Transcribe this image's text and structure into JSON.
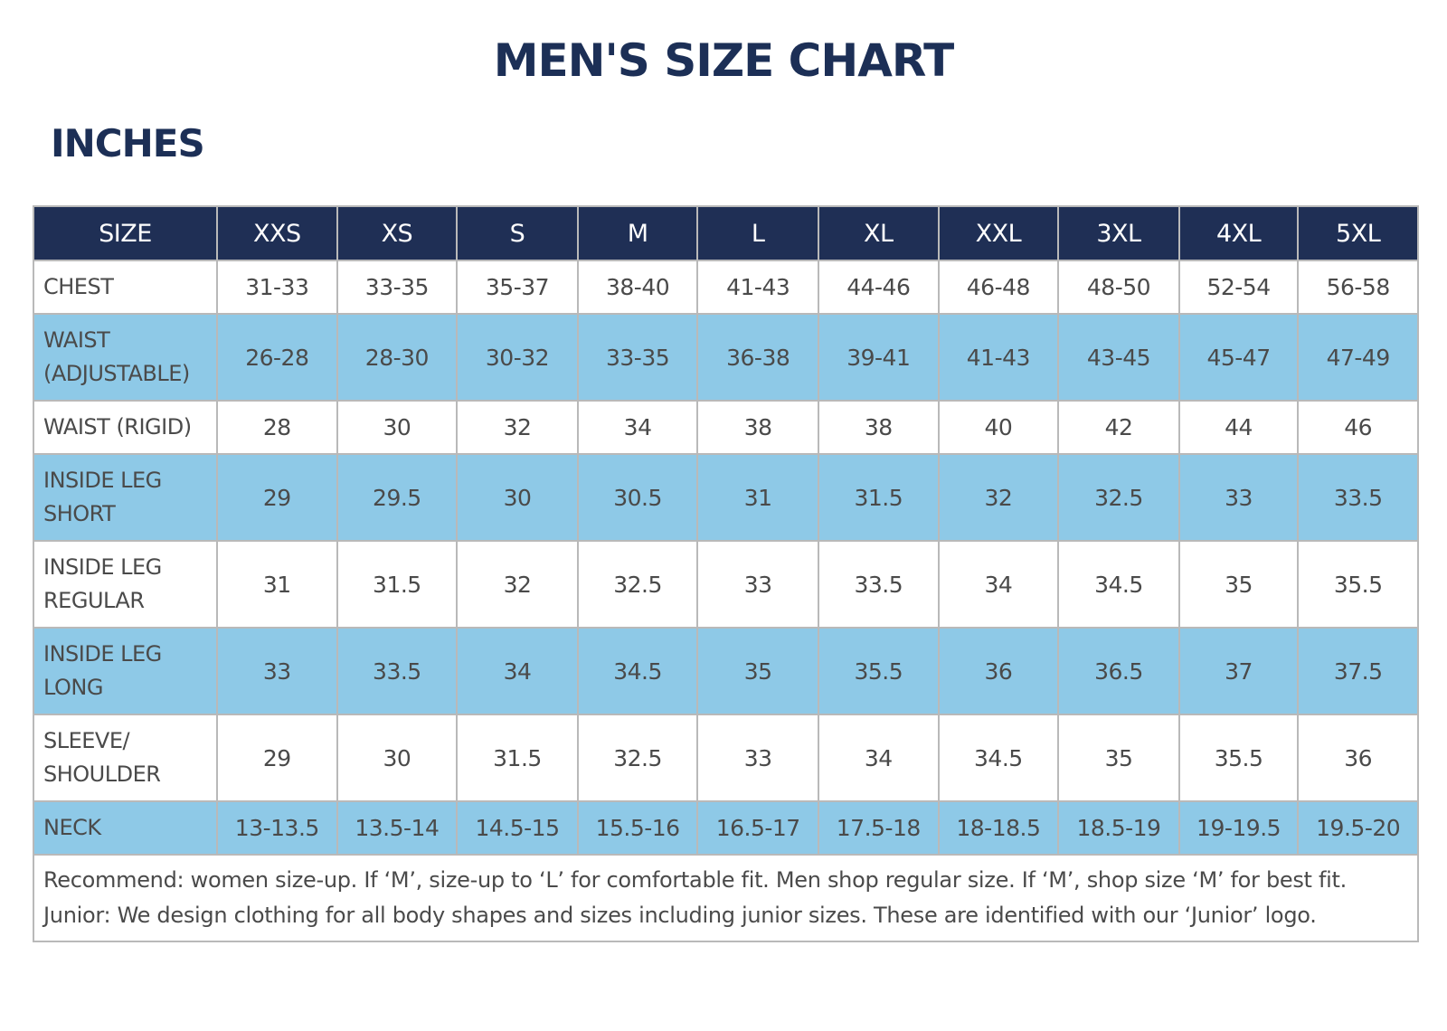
{
  "title": "MEN'S SIZE CHART",
  "subtitle": "INCHES",
  "table": {
    "header": [
      "SIZE",
      "XXS",
      "XS",
      "S",
      "M",
      "L",
      "XL",
      "XXL",
      "3XL",
      "4XL",
      "5XL"
    ],
    "rows": [
      {
        "label": [
          "CHEST"
        ],
        "values": [
          "31-33",
          "33-35",
          "35-37",
          "38-40",
          "41-43",
          "44-46",
          "46-48",
          "48-50",
          "52-54",
          "56-58"
        ]
      },
      {
        "label": [
          "WAIST",
          "(ADJUSTABLE)"
        ],
        "values": [
          "26-28",
          "28-30",
          "30-32",
          "33-35",
          "36-38",
          "39-41",
          "41-43",
          "43-45",
          "45-47",
          "47-49"
        ]
      },
      {
        "label": [
          "WAIST (RIGID)"
        ],
        "values": [
          "28",
          "30",
          "32",
          "34",
          "38",
          "38",
          "40",
          "42",
          "44",
          "46"
        ]
      },
      {
        "label": [
          "INSIDE LEG",
          "SHORT"
        ],
        "values": [
          "29",
          "29.5",
          "30",
          "30.5",
          "31",
          "31.5",
          "32",
          "32.5",
          "33",
          "33.5"
        ]
      },
      {
        "label": [
          "INSIDE LEG",
          "REGULAR"
        ],
        "values": [
          "31",
          "31.5",
          "32",
          "32.5",
          "33",
          "33.5",
          "34",
          "34.5",
          "35",
          "35.5"
        ]
      },
      {
        "label": [
          "INSIDE LEG",
          "LONG"
        ],
        "values": [
          "33",
          "33.5",
          "34",
          "34.5",
          "35",
          "35.5",
          "36",
          "36.5",
          "37",
          "37.5"
        ]
      },
      {
        "label": [
          "SLEEVE/",
          "SHOULDER"
        ],
        "values": [
          "29",
          "30",
          "31.5",
          "32.5",
          "33",
          "34",
          "34.5",
          "35",
          "35.5",
          "36"
        ]
      },
      {
        "label": [
          "NECK"
        ],
        "values": [
          "13-13.5",
          "13.5-14",
          "14.5-15",
          "15.5-16",
          "16.5-17",
          "17.5-18",
          "18-18.5",
          "18.5-19",
          "19-19.5",
          "19.5-20"
        ]
      }
    ]
  },
  "notes": [
    "Recommend: women size-up. If ‘M’, size-up to ‘L’ for comfortable fit. Men shop regular size. If ‘M’, shop size ‘M’ for best fit.",
    "Junior: We design clothing for all body shapes and sizes including junior sizes. These are identified with our ‘Junior’ logo."
  ],
  "colors": {
    "header_bg": "#1f2f55",
    "title": "#1c2f56",
    "row_blue": "#8ec9e7",
    "row_white": "#ffffff",
    "border": "#b9b9b9"
  }
}
